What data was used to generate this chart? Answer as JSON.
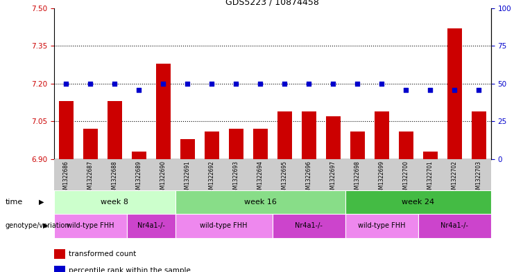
{
  "title": "GDS5223 / 10874458",
  "samples": [
    "GSM1322686",
    "GSM1322687",
    "GSM1322688",
    "GSM1322689",
    "GSM1322690",
    "GSM1322691",
    "GSM1322692",
    "GSM1322693",
    "GSM1322694",
    "GSM1322695",
    "GSM1322696",
    "GSM1322697",
    "GSM1322698",
    "GSM1322699",
    "GSM1322700",
    "GSM1322701",
    "GSM1322702",
    "GSM1322703"
  ],
  "bar_values": [
    7.13,
    7.02,
    7.13,
    6.93,
    7.28,
    6.98,
    7.01,
    7.02,
    7.02,
    7.09,
    7.09,
    7.07,
    7.01,
    7.09,
    7.01,
    6.93,
    7.42,
    7.09
  ],
  "percentile_values": [
    50,
    50,
    50,
    46,
    50,
    50,
    50,
    50,
    50,
    50,
    50,
    50,
    50,
    50,
    46,
    46,
    46,
    46
  ],
  "ylim_left": [
    6.9,
    7.5
  ],
  "ylim_right": [
    0,
    100
  ],
  "yticks_left": [
    6.9,
    7.05,
    7.2,
    7.35,
    7.5
  ],
  "yticks_right": [
    0,
    25,
    50,
    75,
    100
  ],
  "hlines": [
    7.05,
    7.2,
    7.35
  ],
  "bar_color": "#cc0000",
  "percentile_color": "#0000cc",
  "bar_width": 0.6,
  "time_groups": [
    {
      "label": "week 8",
      "start": 0,
      "end": 4,
      "color": "#ccffcc"
    },
    {
      "label": "week 16",
      "start": 5,
      "end": 11,
      "color": "#88dd88"
    },
    {
      "label": "week 24",
      "start": 12,
      "end": 17,
      "color": "#44bb44"
    }
  ],
  "genotype_groups": [
    {
      "label": "wild-type FHH",
      "start": 0,
      "end": 2,
      "color": "#ee88ee"
    },
    {
      "label": "Nr4a1-/-",
      "start": 3,
      "end": 4,
      "color": "#cc44cc"
    },
    {
      "label": "wild-type FHH",
      "start": 5,
      "end": 8,
      "color": "#ee88ee"
    },
    {
      "label": "Nr4a1-/-",
      "start": 9,
      "end": 11,
      "color": "#cc44cc"
    },
    {
      "label": "wild-type FHH",
      "start": 12,
      "end": 14,
      "color": "#ee88ee"
    },
    {
      "label": "Nr4a1-/-",
      "start": 15,
      "end": 17,
      "color": "#cc44cc"
    }
  ],
  "legend_bar_label": "transformed count",
  "legend_pct_label": "percentile rank within the sample",
  "time_label": "time",
  "genotype_label": "genotype/variation",
  "background_color": "#ffffff",
  "left_tick_color": "#cc0000",
  "right_tick_color": "#0000cc",
  "xtick_bg_color": "#cccccc"
}
